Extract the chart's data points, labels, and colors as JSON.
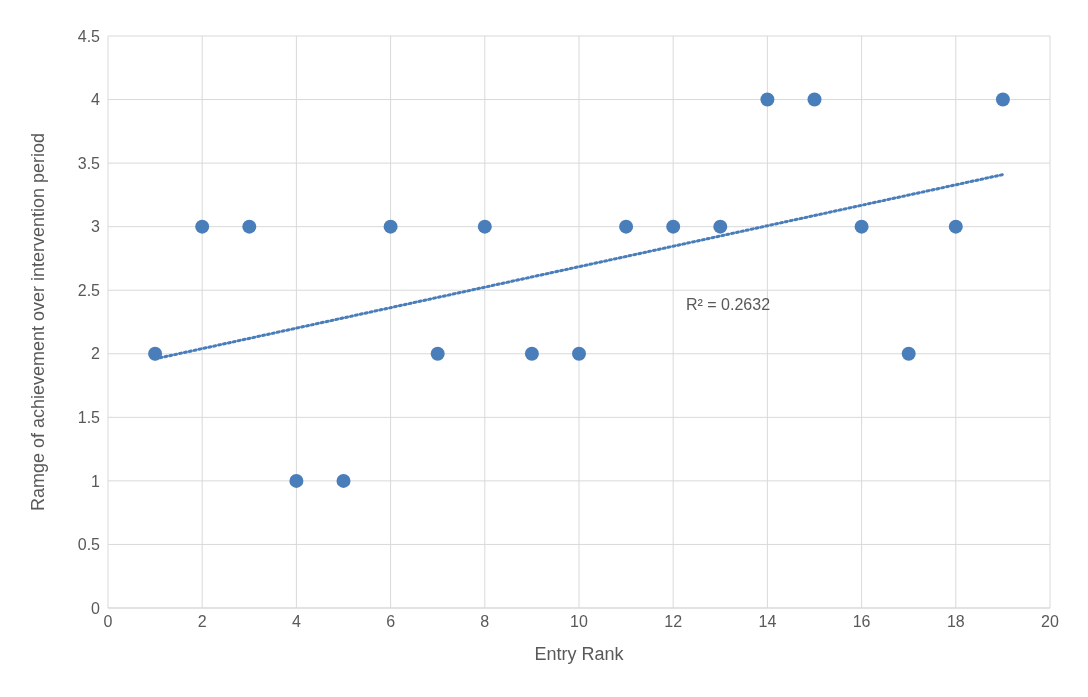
{
  "chart_data": {
    "type": "scatter",
    "xlabel": "Entry Rank",
    "ylabel": "Ramge of achievement over intervention period",
    "xlim": [
      0,
      20
    ],
    "xticks": [
      0,
      2,
      4,
      6,
      8,
      10,
      12,
      14,
      16,
      18,
      20
    ],
    "ylim": [
      0,
      4.5
    ],
    "yticks": [
      0,
      0.5,
      1,
      1.5,
      2,
      2.5,
      3,
      3.5,
      4,
      4.5
    ],
    "grid": true,
    "marker": "circle",
    "series": [
      {
        "color": "#4a7ebb",
        "x": [
          1,
          2,
          3,
          4,
          5,
          6,
          7,
          8,
          9,
          10,
          11,
          12,
          13,
          14,
          15,
          16,
          17,
          18,
          19
        ],
        "values": [
          2,
          3,
          3,
          1,
          1,
          3,
          2,
          3,
          2,
          2,
          3,
          3,
          3,
          4,
          4,
          3,
          2,
          3,
          4
        ]
      },
      {
        "type": "line",
        "color": "#4a7ebb",
        "line_style": "dotted",
        "marker": "none",
        "x": [
          1,
          19
        ],
        "values": [
          1.96,
          3.41
        ]
      }
    ],
    "annotations": [
      "R² = 0.2632"
    ]
  }
}
